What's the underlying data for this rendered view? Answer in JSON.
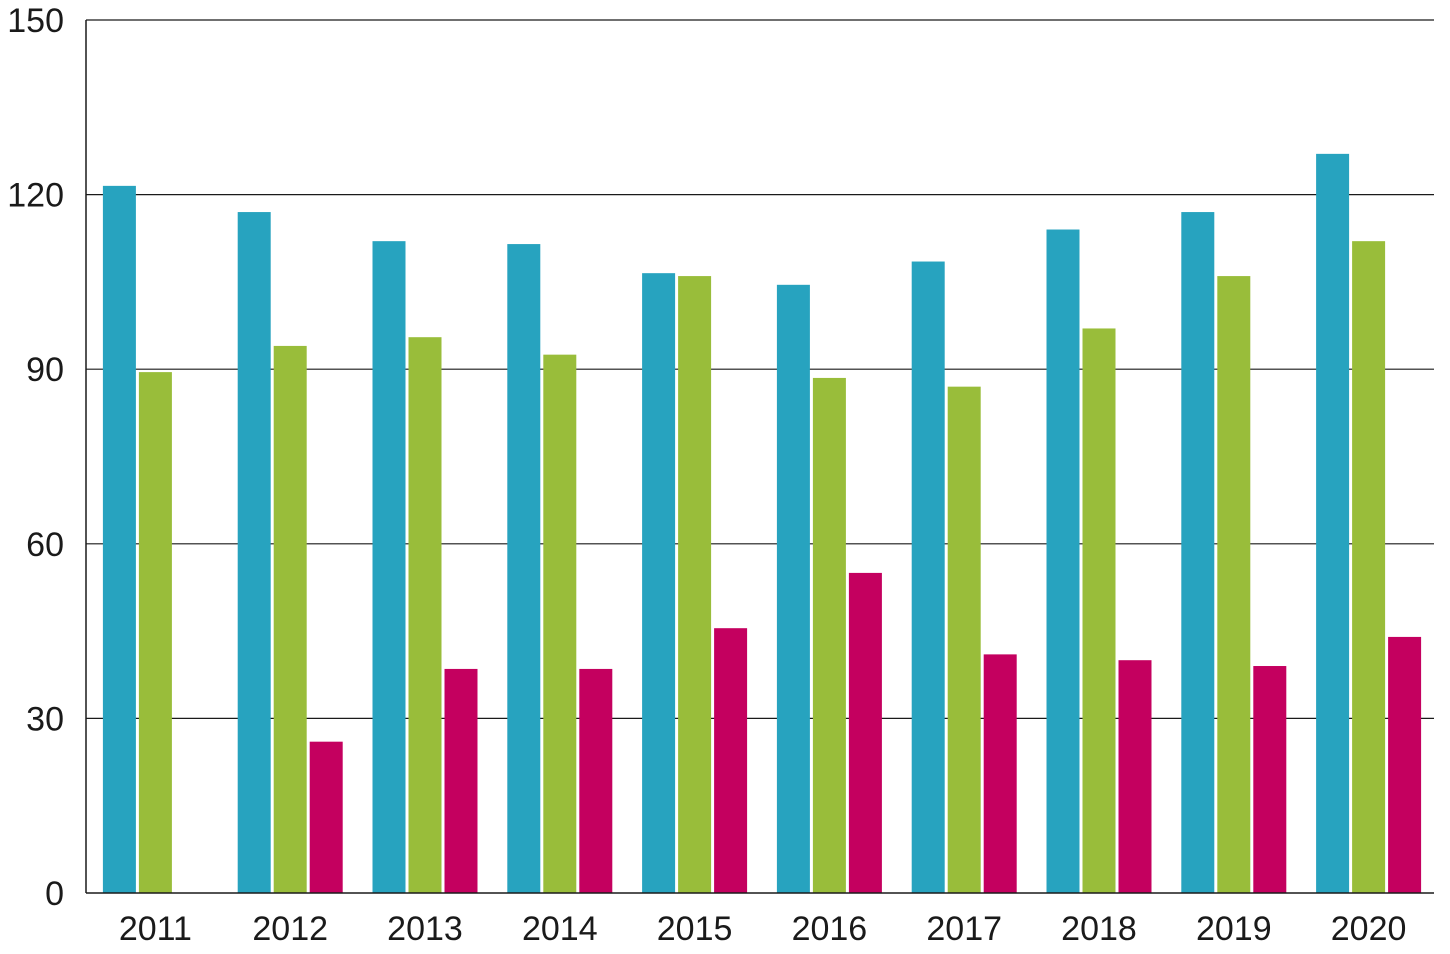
{
  "chart_data": {
    "type": "bar",
    "categories": [
      "2011",
      "2012",
      "2013",
      "2014",
      "2015",
      "2016",
      "2017",
      "2018",
      "2019",
      "2020"
    ],
    "series": [
      {
        "color": "#27a3bf",
        "values": [
          121.5,
          117,
          112,
          111.5,
          106.5,
          104.5,
          108.5,
          114,
          117,
          127
        ]
      },
      {
        "color": "#99bd3a",
        "values": [
          89.5,
          94,
          95.5,
          92.5,
          106,
          88.5,
          87,
          97,
          106,
          112
        ]
      },
      {
        "color": "#c4005f",
        "values": [
          null,
          26,
          38.5,
          38.5,
          45.5,
          55,
          41,
          40,
          39,
          44
        ]
      }
    ],
    "yticks": [
      "0",
      "30",
      "60",
      "90",
      "120",
      "150"
    ],
    "ylim": [
      0,
      150
    ],
    "grid": true,
    "title": "",
    "xlabel": "",
    "ylabel": ""
  }
}
